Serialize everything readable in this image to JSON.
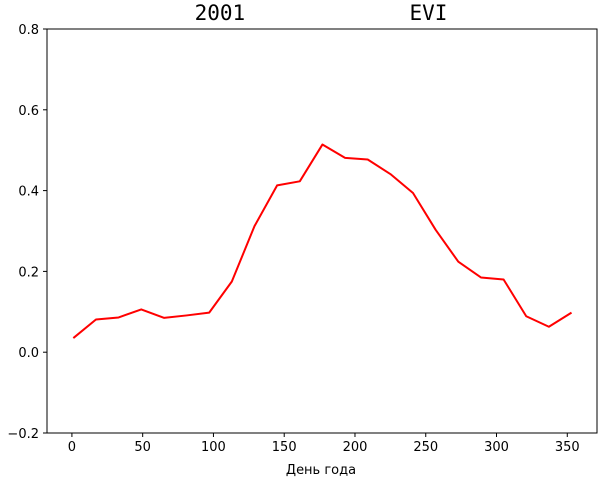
{
  "chart_data": {
    "type": "line",
    "title": "2001             EVI",
    "xlabel": "День года",
    "ylabel": "",
    "xlim": [
      -17.6,
      371
    ],
    "ylim": [
      -0.2,
      0.8
    ],
    "xticks": [
      0,
      50,
      100,
      150,
      200,
      250,
      300,
      350
    ],
    "yticks": [
      -0.2,
      0.0,
      0.2,
      0.4,
      0.6,
      0.8
    ],
    "ytick_labels": [
      "−0.2",
      "0.0",
      "0.2",
      "0.4",
      "0.6",
      "0.8"
    ],
    "grid": false,
    "series": [
      {
        "color": "#ff0000",
        "x": [
          1,
          17,
          33,
          49,
          65,
          81,
          97,
          113,
          129,
          145,
          161,
          177,
          193,
          209,
          225,
          241,
          257,
          273,
          289,
          305,
          321,
          337,
          353
        ],
        "y": [
          0.035,
          0.081,
          0.086,
          0.106,
          0.085,
          0.091,
          0.098,
          0.175,
          0.312,
          0.413,
          0.423,
          0.514,
          0.481,
          0.477,
          0.441,
          0.394,
          0.303,
          0.224,
          0.185,
          0.18,
          0.089,
          0.063,
          0.098
        ]
      }
    ]
  }
}
